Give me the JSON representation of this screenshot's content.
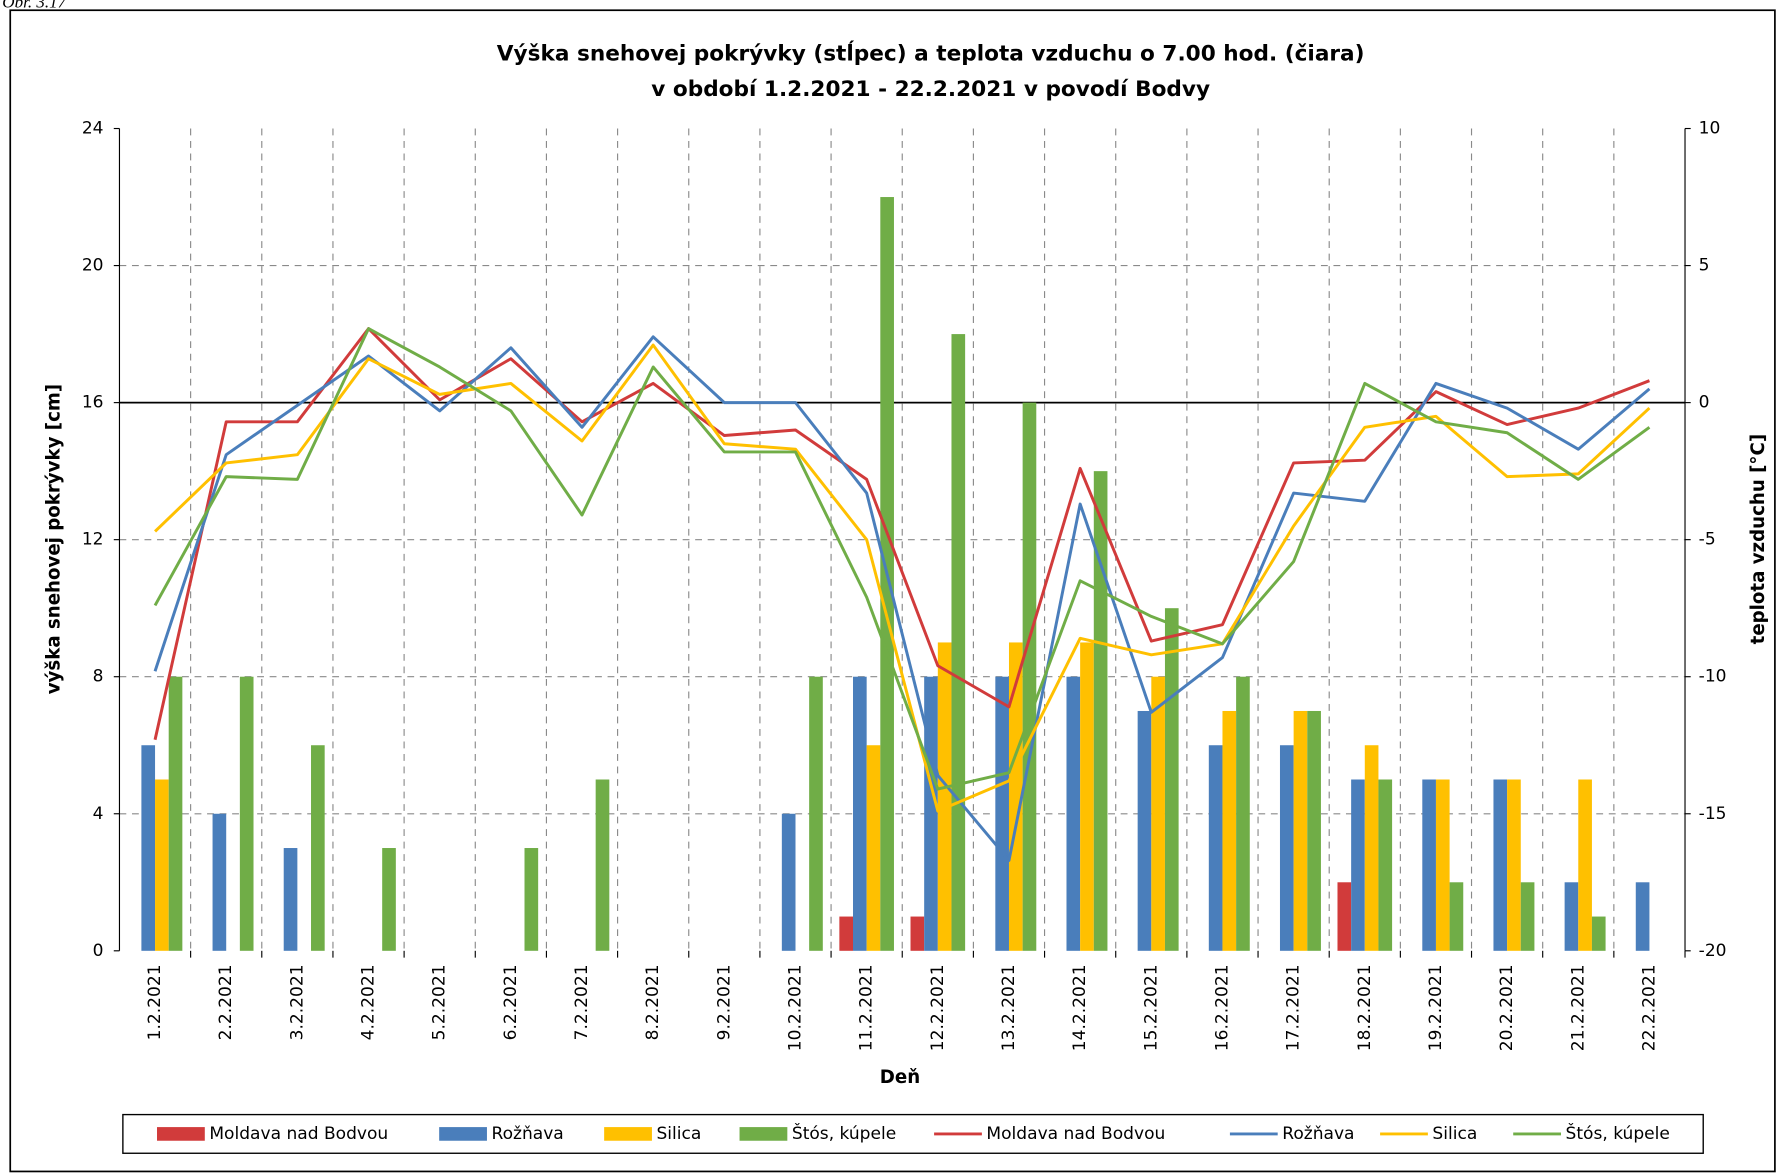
{
  "figure_label": "Obr. 3.17",
  "chart_data": {
    "type": "combo",
    "title": "Výška snehovej pokrývky (stĺpec) a teplota vzduchu o 7.00 hod. (čiara)",
    "subtitle": "v období  1.2.2021 - 22.2.2021 v povodí  Bodvy",
    "x_label": "Deň",
    "y_label": "výška snehovej pokrývky  [cm]",
    "y2_label": "teplota vzduchu [°C]",
    "categories": [
      "1.2.2021",
      "2.2.2021",
      "3.2.2021",
      "4.2.2021",
      "5.2.2021",
      "6.2.2021",
      "7.2.2021",
      "8.2.2021",
      "9.2.2021",
      "10.2.2021",
      "11.2.2021",
      "12.2.2021",
      "13.2.2021",
      "14.2.2021",
      "15.2.2021",
      "16.2.2021",
      "17.2.2021",
      "18.2.2021",
      "19.2.2021",
      "20.2.2021",
      "21.2.2021",
      "22.2.2021"
    ],
    "ylim": [
      0,
      24
    ],
    "yticks": [
      0,
      4,
      8,
      12,
      16,
      20,
      24
    ],
    "y2lim": [
      -20,
      10
    ],
    "y2ticks": [
      -20,
      -15,
      -10,
      -5,
      0,
      5,
      10
    ],
    "grid": true,
    "legend": "bottom",
    "series": [
      {
        "name": "Moldava nad Bodvou",
        "type": "bar",
        "axis": "y",
        "color": "#d13b3b",
        "values": [
          0,
          0,
          0,
          0,
          0,
          0,
          0,
          0,
          0,
          0,
          1,
          1,
          0,
          0,
          0,
          0,
          0,
          2,
          0,
          0,
          0,
          0
        ]
      },
      {
        "name": "Rožňava",
        "type": "bar",
        "axis": "y",
        "color": "#4a7ebb",
        "values": [
          6,
          4,
          3,
          0,
          0,
          0,
          0,
          0,
          0,
          4,
          8,
          8,
          8,
          8,
          7,
          6,
          6,
          5,
          5,
          5,
          2,
          2
        ]
      },
      {
        "name": "Silica",
        "type": "bar",
        "axis": "y",
        "color": "#ffc000",
        "values": [
          5,
          0,
          0,
          0,
          0,
          0,
          0,
          0,
          0,
          0,
          6,
          9,
          9,
          9,
          8,
          7,
          7,
          6,
          5,
          5,
          5,
          0
        ]
      },
      {
        "name": "Štós, kúpele",
        "type": "bar",
        "axis": "y",
        "color": "#70ad47",
        "values": [
          8,
          8,
          6,
          3,
          0,
          3,
          5,
          0,
          0,
          8,
          22,
          18,
          16,
          14,
          10,
          8,
          7,
          5,
          2,
          2,
          1,
          0
        ]
      },
      {
        "name": "Moldava nad Bodvou",
        "type": "line",
        "axis": "y2",
        "color": "#d13b3b",
        "values": [
          -12.3,
          -0.7,
          -0.7,
          2.7,
          0.1,
          1.6,
          -0.7,
          0.7,
          -1.2,
          -1.0,
          -2.8,
          -9.6,
          -11.1,
          -2.4,
          -8.7,
          -8.1,
          -2.2,
          -2.1,
          0.4,
          -0.8,
          -0.2,
          0.8
        ]
      },
      {
        "name": "Rožňava",
        "type": "line",
        "axis": "y2",
        "color": "#4a7ebb",
        "values": [
          -9.8,
          -1.9,
          -0.1,
          1.7,
          -0.3,
          2.0,
          -0.9,
          2.4,
          0,
          0,
          -3.3,
          -13.6,
          -16.7,
          -3.7,
          -11.3,
          -9.3,
          -3.3,
          -3.6,
          0.7,
          -0.2,
          -1.7,
          0.5
        ]
      },
      {
        "name": "Silica",
        "type": "line",
        "axis": "y2",
        "color": "#ffc000",
        "values": [
          -4.7,
          -2.2,
          -1.9,
          1.6,
          0.3,
          0.7,
          -1.4,
          2.1,
          -1.5,
          -1.7,
          -5.0,
          -14.9,
          -13.8,
          -8.6,
          -9.2,
          -8.8,
          -4.5,
          -0.9,
          -0.5,
          -2.7,
          -2.6,
          -0.2
        ]
      },
      {
        "name": "Štós, kúpele",
        "type": "line",
        "axis": "y2",
        "color": "#70ad47",
        "values": [
          -7.4,
          -2.7,
          -2.8,
          2.7,
          1.3,
          -0.3,
          -4.1,
          1.3,
          -1.8,
          -1.8,
          -7.1,
          -14.1,
          -13.5,
          -6.5,
          -7.8,
          -8.8,
          -5.8,
          0.7,
          -0.7,
          -1.1,
          -2.8,
          -0.9
        ]
      }
    ]
  }
}
